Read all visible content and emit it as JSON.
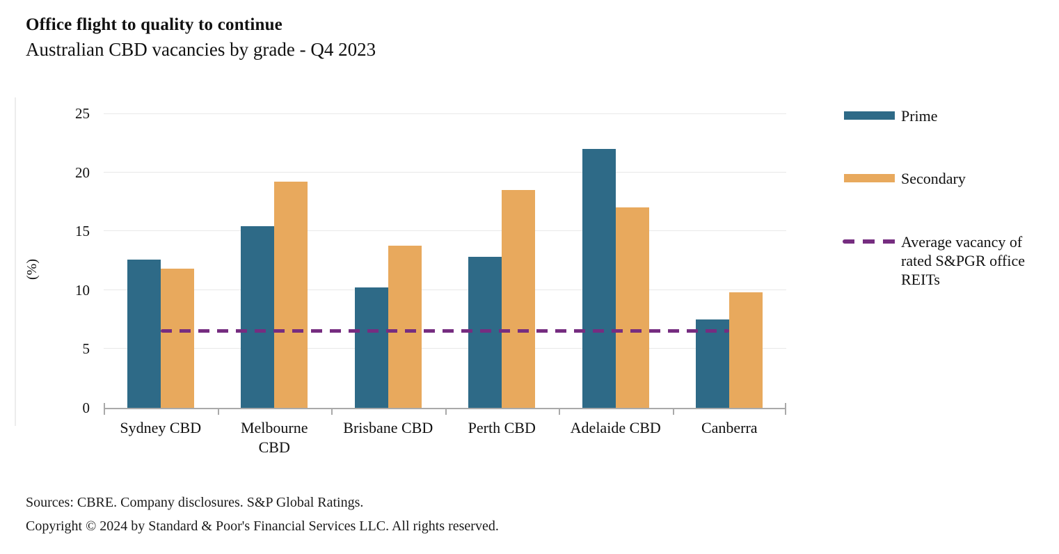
{
  "title": "Office flight to quality to continue",
  "subtitle": "Australian CBD vacancies by grade - Q4 2023",
  "legend": {
    "prime_label": "Prime",
    "secondary_label": "Secondary",
    "average_label": "Average vacancy of rated S&PGR office REITs"
  },
  "footer": {
    "sources": "Sources: CBRE. Company disclosures. S&P Global Ratings.",
    "copyright": "Copyright © 2024 by Standard & Poor's Financial Services LLC. All rights reserved."
  },
  "colors": {
    "prime": "#2E6A87",
    "secondary": "#E8A95D",
    "average_line": "#762D80",
    "gridline": "#E8E8E8",
    "axis": "#A9A9A9",
    "text": "#111111"
  },
  "chart_data": {
    "type": "bar",
    "title": "Office flight to quality to continue",
    "subtitle": "Australian CBD vacancies by grade - Q4 2023",
    "ylabel": "(%)",
    "xlabel": "",
    "ylim": [
      0,
      25
    ],
    "yticks": [
      0,
      5,
      10,
      15,
      20,
      25
    ],
    "grid": true,
    "legend_position": "right",
    "categories": [
      "Sydney CBD",
      "Melbourne CBD",
      "Brisbane CBD",
      "Perth CBD",
      "Adelaide CBD",
      "Canberra"
    ],
    "category_label_lines": [
      [
        "Sydney CBD"
      ],
      [
        "Melbourne",
        "CBD"
      ],
      [
        "Brisbane CBD"
      ],
      [
        "Perth CBD"
      ],
      [
        "Adelaide CBD"
      ],
      [
        "Canberra"
      ]
    ],
    "series": [
      {
        "name": "Prime",
        "color": "#2E6A87",
        "values": [
          12.6,
          15.4,
          10.2,
          12.8,
          22.0,
          7.5
        ]
      },
      {
        "name": "Secondary",
        "color": "#E8A95D",
        "values": [
          11.8,
          19.2,
          13.8,
          18.5,
          17.0,
          9.8
        ]
      }
    ],
    "average_line": {
      "name": "Average vacancy of rated S&PGR office REITs",
      "value": 6.5,
      "color": "#762D80",
      "style": "dashed"
    }
  }
}
